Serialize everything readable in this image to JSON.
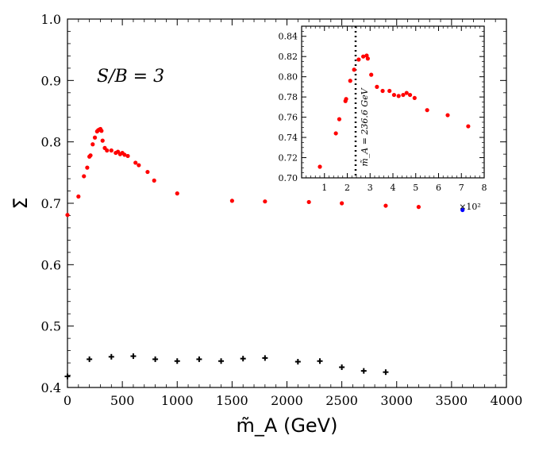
{
  "chart_data": [
    {
      "type": "scatter",
      "xlabel": "m̃_A (GeV)",
      "ylabel": "Σ̄",
      "xlim": [
        0,
        4000
      ],
      "ylim": [
        0.4,
        1.0
      ],
      "x_ticks": [
        "0",
        "500",
        "1000",
        "1500",
        "2000",
        "2500",
        "3000",
        "3500",
        "4000"
      ],
      "y_ticks": [
        "0.4",
        "0.5",
        "0.6",
        "0.7",
        "0.8",
        "0.9",
        "1.0"
      ],
      "annotation": "S/B = 3",
      "series": [
        {
          "color": "#ff0000",
          "marker": "dot",
          "points": [
            [
              0,
              0.681
            ],
            [
              100,
              0.711
            ],
            [
              150,
              0.744
            ],
            [
              180,
              0.758
            ],
            [
              200,
              0.776
            ],
            [
              210,
              0.778
            ],
            [
              230,
              0.796
            ],
            [
              250,
              0.807
            ],
            [
              270,
              0.817
            ],
            [
              280,
              0.819
            ],
            [
              290,
              0.82
            ],
            [
              300,
              0.821
            ],
            [
              310,
              0.818
            ],
            [
              320,
              0.802
            ],
            [
              340,
              0.79
            ],
            [
              360,
              0.786
            ],
            [
              400,
              0.786
            ],
            [
              440,
              0.782
            ],
            [
              460,
              0.784
            ],
            [
              480,
              0.78
            ],
            [
              500,
              0.782
            ],
            [
              520,
              0.779
            ],
            [
              550,
              0.777
            ],
            [
              620,
              0.766
            ],
            [
              650,
              0.762
            ],
            [
              730,
              0.751
            ],
            [
              790,
              0.737
            ],
            [
              1000,
              0.716
            ],
            [
              1500,
              0.704
            ],
            [
              1800,
              0.703
            ],
            [
              2200,
              0.702
            ],
            [
              2500,
              0.7
            ],
            [
              2900,
              0.696
            ],
            [
              3200,
              0.694
            ]
          ]
        },
        {
          "color": "#0000ff",
          "marker": "dot",
          "points": [
            [
              3600,
              0.689
            ]
          ]
        },
        {
          "color": "#000000",
          "marker": "plus",
          "points": [
            [
              0,
              0.418
            ],
            [
              200,
              0.446
            ],
            [
              400,
              0.45
            ],
            [
              600,
              0.451
            ],
            [
              800,
              0.446
            ],
            [
              1000,
              0.443
            ],
            [
              1200,
              0.446
            ],
            [
              1400,
              0.443
            ],
            [
              1600,
              0.447
            ],
            [
              1800,
              0.448
            ],
            [
              2100,
              0.442
            ],
            [
              2300,
              0.443
            ],
            [
              2500,
              0.433
            ],
            [
              2700,
              0.427
            ],
            [
              2900,
              0.425
            ]
          ]
        }
      ]
    },
    {
      "type": "scatter",
      "role": "inset",
      "xlim": [
        0,
        8
      ],
      "ylim": [
        0.7,
        0.85
      ],
      "x_ticks": [
        "1",
        "2",
        "3",
        "4",
        "5",
        "6",
        "7",
        "8"
      ],
      "y_ticks": [
        "0.70",
        "0.72",
        "0.74",
        "0.76",
        "0.78",
        "0.80",
        "0.82",
        "0.84"
      ],
      "x_scale_label": "×10²",
      "vline": {
        "x": 2.366,
        "label": "m̃_A = 236.6 GeV",
        "style": "dotted"
      },
      "series": [
        {
          "color": "#ff0000",
          "marker": "dot",
          "points": [
            [
              0.8,
              0.711
            ],
            [
              1.5,
              0.744
            ],
            [
              1.65,
              0.758
            ],
            [
              1.92,
              0.776
            ],
            [
              1.95,
              0.778
            ],
            [
              2.13,
              0.796
            ],
            [
              2.3,
              0.807
            ],
            [
              2.5,
              0.817
            ],
            [
              2.7,
              0.82
            ],
            [
              2.85,
              0.821
            ],
            [
              2.9,
              0.818
            ],
            [
              3.05,
              0.802
            ],
            [
              3.3,
              0.79
            ],
            [
              3.55,
              0.786
            ],
            [
              3.85,
              0.786
            ],
            [
              4.05,
              0.782
            ],
            [
              4.25,
              0.781
            ],
            [
              4.45,
              0.782
            ],
            [
              4.6,
              0.784
            ],
            [
              4.75,
              0.782
            ],
            [
              4.95,
              0.779
            ],
            [
              5.5,
              0.767
            ],
            [
              6.4,
              0.762
            ],
            [
              7.3,
              0.751
            ]
          ]
        }
      ]
    }
  ]
}
